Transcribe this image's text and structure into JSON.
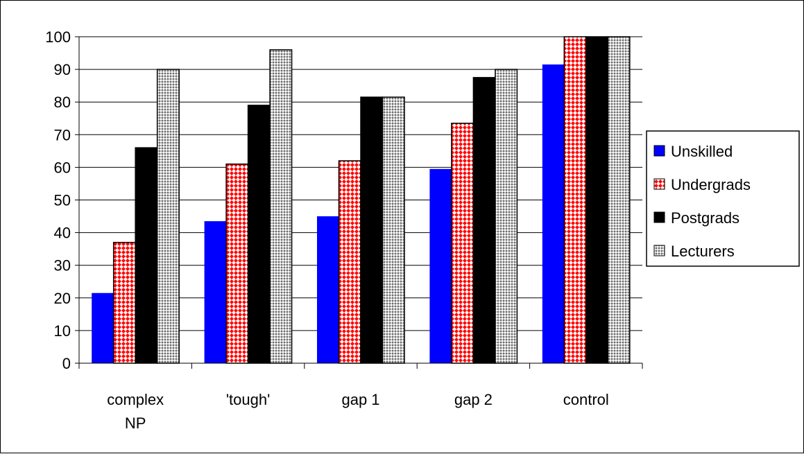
{
  "chart_data": {
    "type": "bar",
    "title": "",
    "xlabel": "",
    "ylabel": "",
    "ylim": [
      0,
      100
    ],
    "yticks": [
      0,
      10,
      20,
      30,
      40,
      50,
      60,
      70,
      80,
      90,
      100
    ],
    "grid": true,
    "legend_position": "right",
    "categories": [
      [
        "complex",
        "NP"
      ],
      [
        "'tough'"
      ],
      [
        "gap 1"
      ],
      [
        "gap 2"
      ],
      [
        "control"
      ]
    ],
    "series": [
      {
        "name": "Unskilled",
        "pattern": "solid",
        "color": "#0000ff",
        "values": [
          21.5,
          43.5,
          45,
          59.5,
          91.5
        ]
      },
      {
        "name": "Undergrads",
        "pattern": "diamond",
        "color": "#ff0000",
        "values": [
          37,
          61,
          62,
          73.5,
          100
        ]
      },
      {
        "name": "Postgrads",
        "pattern": "solid",
        "color": "#000000",
        "values": [
          66,
          79,
          81.5,
          87.5,
          100
        ]
      },
      {
        "name": "Lecturers",
        "pattern": "dots",
        "color": "#999999",
        "values": [
          90,
          96,
          81.5,
          90,
          100
        ]
      }
    ]
  }
}
